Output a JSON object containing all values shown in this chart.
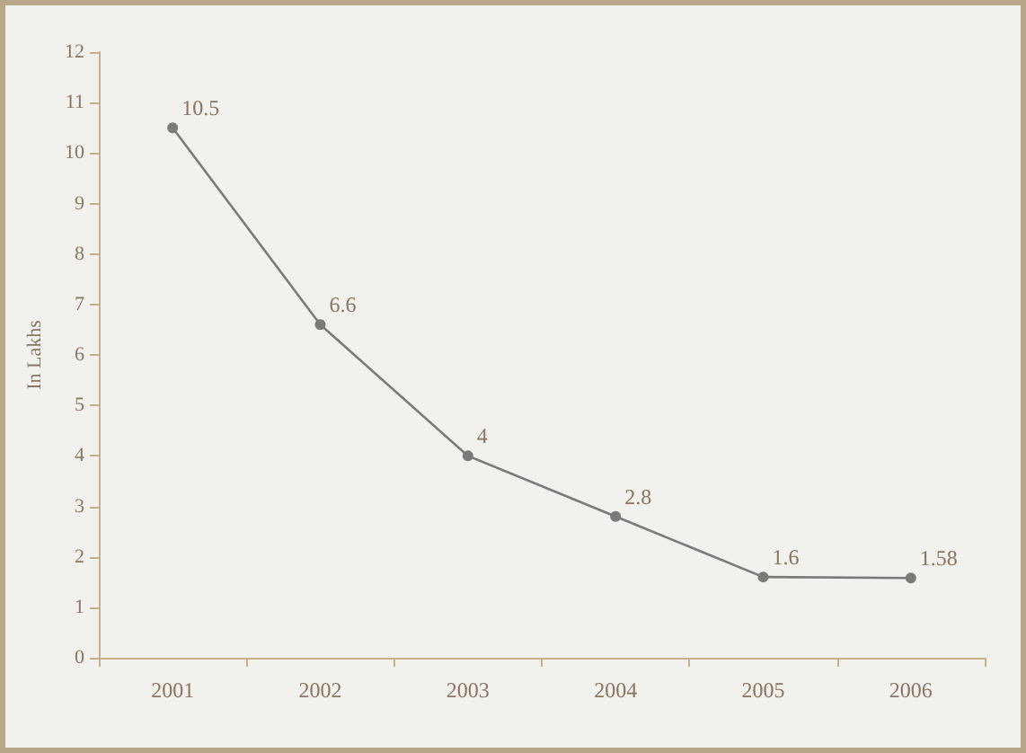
{
  "chart_data": {
    "type": "line",
    "ylabel": "In Lakhs",
    "categories": [
      "2001",
      "2002",
      "2003",
      "2004",
      "2005",
      "2006"
    ],
    "series": [
      {
        "color": "#7a7a7a",
        "values": [
          10.5,
          6.6,
          4,
          2.8,
          1.6,
          1.58
        ]
      }
    ],
    "ylim": [
      0,
      12
    ],
    "yticks": [
      0,
      1,
      2,
      3,
      4,
      5,
      6,
      7,
      8,
      9,
      10,
      11,
      12
    ],
    "data_labels": true,
    "marker": "circle",
    "grid": false
  }
}
